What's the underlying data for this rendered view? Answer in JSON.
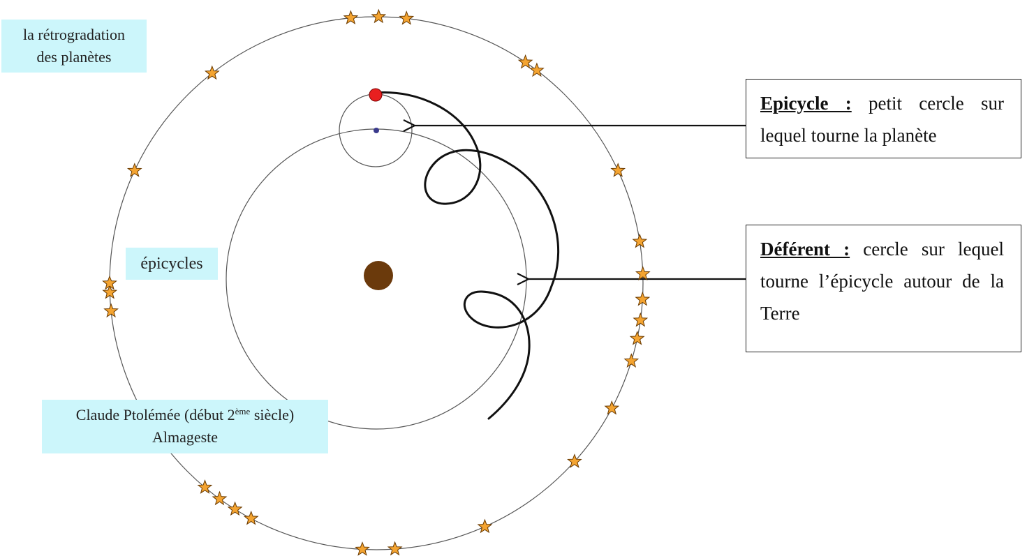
{
  "labels": {
    "retrogradation_line1": "la rétrogradation",
    "retrogradation_line2": "des planètes",
    "epicycles": "épicycles",
    "ptolemy_line1_pre": "Claude Ptolémée (début 2",
    "ptolemy_line1_sup": "ème",
    "ptolemy_line1_post": " siècle)",
    "ptolemy_line2": "Almageste"
  },
  "definitions": {
    "epicycle_term": "Epicycle :",
    "epicycle_text": "petit cercle sur lequel tourne la planète",
    "deferent_term": "Déférent :",
    "deferent_text": "cercle sur lequel tourne l’épicycle autour de la Terre"
  },
  "colors": {
    "label_background": "#ccf6fb",
    "earth": "#6b3a0c",
    "planet": "#e82020",
    "epicycle_center": "#3a3a8c",
    "star_fill": "#f4a431",
    "star_stroke": "#6a3a00"
  },
  "icons": {
    "star": "star-icon",
    "earth": "earth-icon",
    "planet": "planet-icon"
  }
}
